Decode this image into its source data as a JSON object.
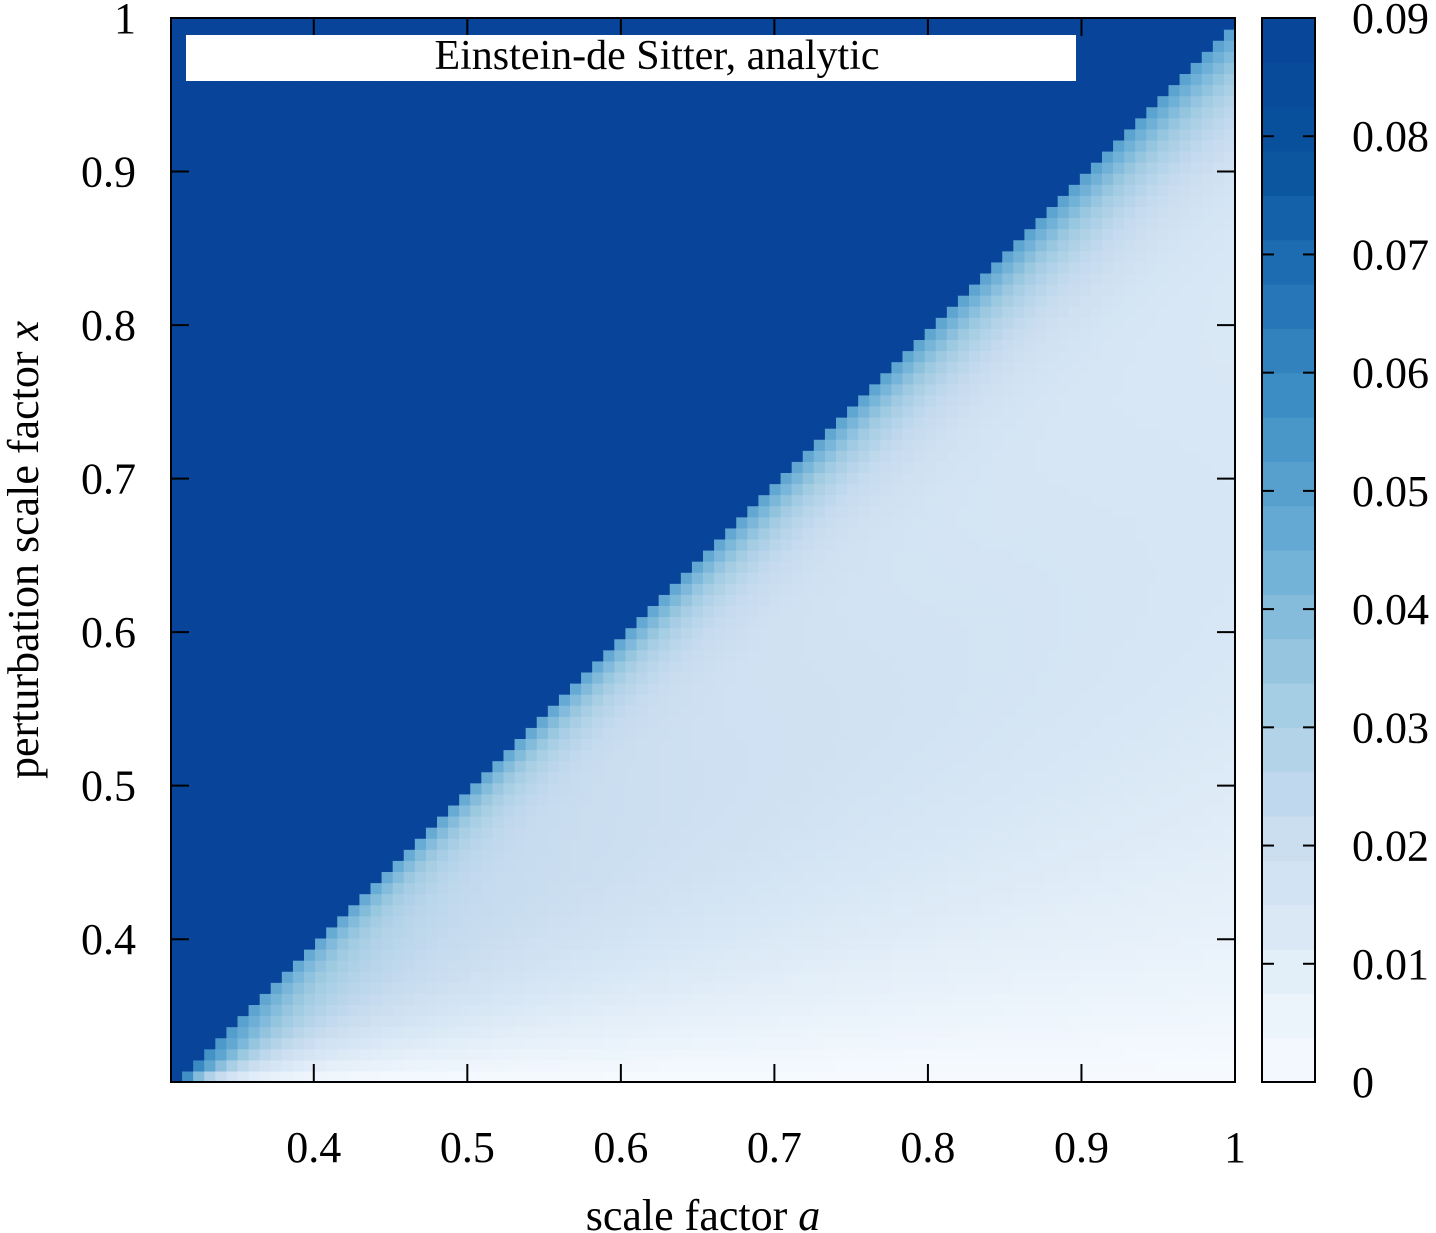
{
  "chart_data": {
    "type": "heatmap",
    "title": "Einstein-de Sitter, analytic",
    "xlabel": {
      "text": "scale factor ",
      "var": "a"
    },
    "ylabel": {
      "text": "perturbation scale factor ",
      "var": "x"
    },
    "xlim": [
      0.307,
      1.0
    ],
    "ylim": [
      0.307,
      1.0
    ],
    "xticks": [
      0.4,
      0.5,
      0.6,
      0.7,
      0.8,
      0.9,
      1
    ],
    "xtick_labels": [
      "0.4",
      "0.5",
      "0.6",
      "0.7",
      "0.8",
      "0.9",
      "1"
    ],
    "yticks": [
      0.4,
      0.5,
      0.6,
      0.7,
      0.8,
      0.9,
      1
    ],
    "ytick_labels": [
      "0.4",
      "0.5",
      "0.6",
      "0.7",
      "0.8",
      "0.9",
      "1"
    ],
    "colorbar": {
      "range": [
        0,
        0.09
      ],
      "ticks": [
        0,
        0.01,
        0.02,
        0.03,
        0.04,
        0.05,
        0.06,
        0.07,
        0.08,
        0.09
      ],
      "tick_labels": [
        "0",
        "0.01",
        "0.02",
        "0.03",
        "0.04",
        "0.05",
        "0.06",
        "0.07",
        "0.08",
        "0.09"
      ],
      "colorscale": [
        [
          0.0,
          "#f7fbff"
        ],
        [
          0.125,
          "#deebf7"
        ],
        [
          0.25,
          "#c6dbef"
        ],
        [
          0.375,
          "#9ecae1"
        ],
        [
          0.5,
          "#6baed6"
        ],
        [
          0.625,
          "#4292c6"
        ],
        [
          0.75,
          "#2171b5"
        ],
        [
          0.875,
          "#08519c"
        ],
        [
          1.0,
          "#08449a"
        ]
      ]
    },
    "saturated_region": "x >= a (value at or above 0.09)",
    "boundary_value": 0.055,
    "diagonal_peak_value": 0.022
  }
}
